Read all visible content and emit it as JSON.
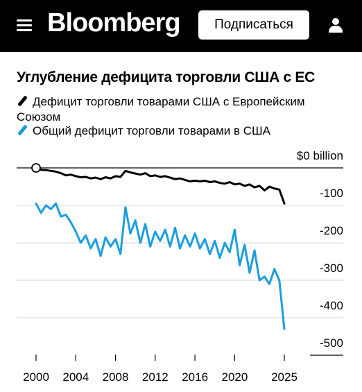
{
  "header": {
    "logo": "Bloomberg",
    "subscribe_label": "Подписаться",
    "menu_icon": "hamburger-menu-icon",
    "user_icon": "user-icon",
    "background": "#000000"
  },
  "chart_data": {
    "type": "line",
    "title": "Углубление дефицита торговли США с ЕС",
    "xlabel": "",
    "ylabel": "",
    "xlim": [
      2000,
      2025
    ],
    "ylim": [
      -500,
      0
    ],
    "x_ticks": [
      2000,
      2004,
      2008,
      2012,
      2016,
      2020,
      2025
    ],
    "y_ticks": [
      0,
      -100,
      -200,
      -300,
      -400,
      -500
    ],
    "y_tick_labels": [
      "$0 billion",
      "-100",
      "-200",
      "-300",
      "-400",
      "-500"
    ],
    "grid": true,
    "legend_position": "top-left",
    "series": [
      {
        "name": "Дефицит торговли товарами США с Европейским Союзом",
        "color": "#000000",
        "x": [
          2000,
          2000.5,
          2001,
          2001.5,
          2002,
          2002.5,
          2003,
          2003.5,
          2004,
          2004.5,
          2005,
          2005.5,
          2006,
          2006.5,
          2007,
          2007.5,
          2008,
          2008.5,
          2009,
          2009.5,
          2010,
          2010.5,
          2011,
          2011.5,
          2012,
          2012.5,
          2013,
          2013.5,
          2014,
          2014.5,
          2015,
          2015.5,
          2016,
          2016.5,
          2017,
          2017.5,
          2018,
          2018.5,
          2019,
          2019.5,
          2020,
          2020.5,
          2021,
          2021.5,
          2022,
          2022.5,
          2023,
          2023.5,
          2024,
          2024.5,
          2025
        ],
        "values": [
          -3,
          -5,
          -6,
          -8,
          -10,
          -14,
          -20,
          -18,
          -22,
          -25,
          -24,
          -28,
          -26,
          -30,
          -25,
          -28,
          -22,
          -24,
          -8,
          -12,
          -15,
          -18,
          -14,
          -22,
          -20,
          -24,
          -22,
          -26,
          -30,
          -28,
          -32,
          -36,
          -34,
          -36,
          -34,
          -38,
          -36,
          -40,
          -42,
          -38,
          -44,
          -42,
          -48,
          -44,
          -52,
          -48,
          -60,
          -50,
          -55,
          -58,
          -95
        ]
      },
      {
        "name": "Общий дефицит торговли товарами в США",
        "color": "#1a9ee0",
        "x": [
          2000,
          2000.5,
          2001,
          2001.5,
          2002,
          2002.5,
          2003,
          2003.5,
          2004,
          2004.5,
          2005,
          2005.5,
          2006,
          2006.5,
          2007,
          2007.5,
          2008,
          2008.5,
          2009,
          2009.5,
          2010,
          2010.5,
          2011,
          2011.5,
          2012,
          2012.5,
          2013,
          2013.5,
          2014,
          2014.5,
          2015,
          2015.5,
          2016,
          2016.5,
          2017,
          2017.5,
          2018,
          2018.5,
          2019,
          2019.5,
          2020,
          2020.5,
          2021,
          2021.5,
          2022,
          2022.5,
          2023,
          2023.5,
          2024,
          2024.5,
          2025
        ],
        "values": [
          -95,
          -120,
          -100,
          -110,
          -95,
          -130,
          -125,
          -145,
          -170,
          -200,
          -180,
          -215,
          -190,
          -235,
          -185,
          -210,
          -190,
          -230,
          -105,
          -175,
          -140,
          -200,
          -150,
          -210,
          -170,
          -195,
          -165,
          -210,
          -160,
          -215,
          -180,
          -210,
          -175,
          -215,
          -190,
          -230,
          -195,
          -240,
          -200,
          -225,
          -165,
          -260,
          -205,
          -280,
          -220,
          -300,
          -290,
          -310,
          -270,
          -300,
          -430
        ]
      }
    ]
  }
}
